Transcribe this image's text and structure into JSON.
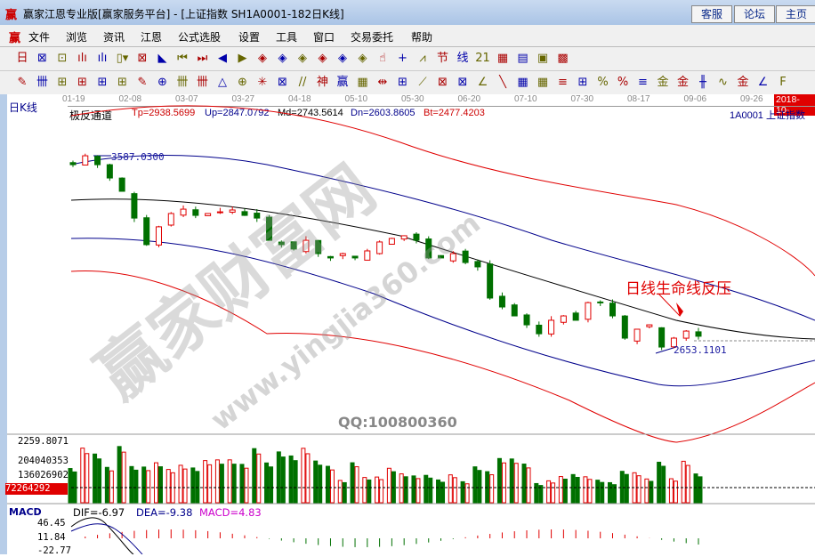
{
  "window": {
    "title": "赢家江恩专业版[赢家服务平台] - [上证指数  SH1A0001-182日K线]",
    "logo": "赢",
    "buttons": [
      "客服",
      "论坛",
      "主页"
    ]
  },
  "menu": [
    "文件",
    "浏览",
    "资讯",
    "江恩",
    "公式选股",
    "设置",
    "工具",
    "窗口",
    "交易委托",
    "帮助"
  ],
  "toolbar1": [
    "日▾",
    "⊠",
    "⊡",
    "ılı",
    "ılı",
    "▯▾",
    "⊠",
    "◣",
    "⏮",
    "⏭",
    "◀",
    "▶",
    "◈",
    "◈",
    "◈",
    "◈",
    "◈",
    "◈",
    "☝",
    "+",
    "⩘",
    "节",
    "线",
    "21",
    "▦",
    "▤",
    "▣",
    "▩"
  ],
  "toolbar2": [
    "✎",
    "卌",
    "⊞",
    "⊞",
    "⊞",
    "⊞",
    "✎",
    "⊕",
    "卌",
    "卌",
    "△",
    "⊕",
    "✳",
    "⊠",
    "//",
    "神",
    "赢",
    "▦",
    "⇹",
    "⊞",
    "⟋",
    "⊠",
    "⊠",
    "∠",
    "╲",
    "▦",
    "▦",
    "≡",
    "⊞",
    "%",
    "%",
    "≡",
    "金",
    "金",
    "╫",
    "∿",
    "金",
    "∠",
    "F"
  ],
  "chart": {
    "period_label": "日K线",
    "date_ticks": [
      "01-19",
      "02-08",
      "03-07",
      "03-27",
      "04-18",
      "05-10",
      "05-30",
      "06-20",
      "07-10",
      "07-30",
      "08-17",
      "09-06",
      "09-26"
    ],
    "current_date": "2018-10-",
    "indicator": "极反通道",
    "tp": "Tp=2938.5699",
    "up": "Up=2847.0792",
    "md": "Md=2743.5614",
    "dn": "Dn=2603.8605",
    "bt": "Bt=2477.4203",
    "symbol": "1A0001  上证指数",
    "high_label": "3587.0300",
    "low_label": "2653.1101",
    "annotation": "日线生命线反压",
    "watermark": "赢家财富网",
    "watermark_url": "www.yingjia360.com",
    "qq": "QQ:100800360"
  },
  "chart_data": {
    "type": "candlestick",
    "closes": [
      3548,
      3591,
      3548,
      3484,
      3420,
      3291,
      3163,
      3249,
      3313,
      3334,
      3304,
      3313,
      3321,
      3330,
      3304,
      3291,
      3184,
      3163,
      3142,
      3184,
      3120,
      3099,
      3120,
      3099,
      3133,
      3176,
      3193,
      3206,
      3184,
      3099,
      3099,
      3120,
      3077,
      3056,
      2906,
      2863,
      2820,
      2777,
      2734,
      2799,
      2820,
      2799,
      2884,
      2884,
      2820,
      2713,
      2756,
      2777,
      2670,
      2713,
      2747,
      2722
    ]
  },
  "volume": {
    "labels": [
      "2259.8071",
      "204040353",
      "136026902"
    ],
    "current": "72264292"
  },
  "macd": {
    "label": "MACD",
    "dif": "DIF=-6.97",
    "dea": "DEA=-9.38",
    "macd": "MACD=4.83",
    "ticks": [
      "46.45",
      "11.84",
      "-22.77"
    ]
  },
  "colors": {
    "up": "#e00000",
    "down": "#007000",
    "title_red": "#cc0000",
    "blue": "#00008b"
  }
}
